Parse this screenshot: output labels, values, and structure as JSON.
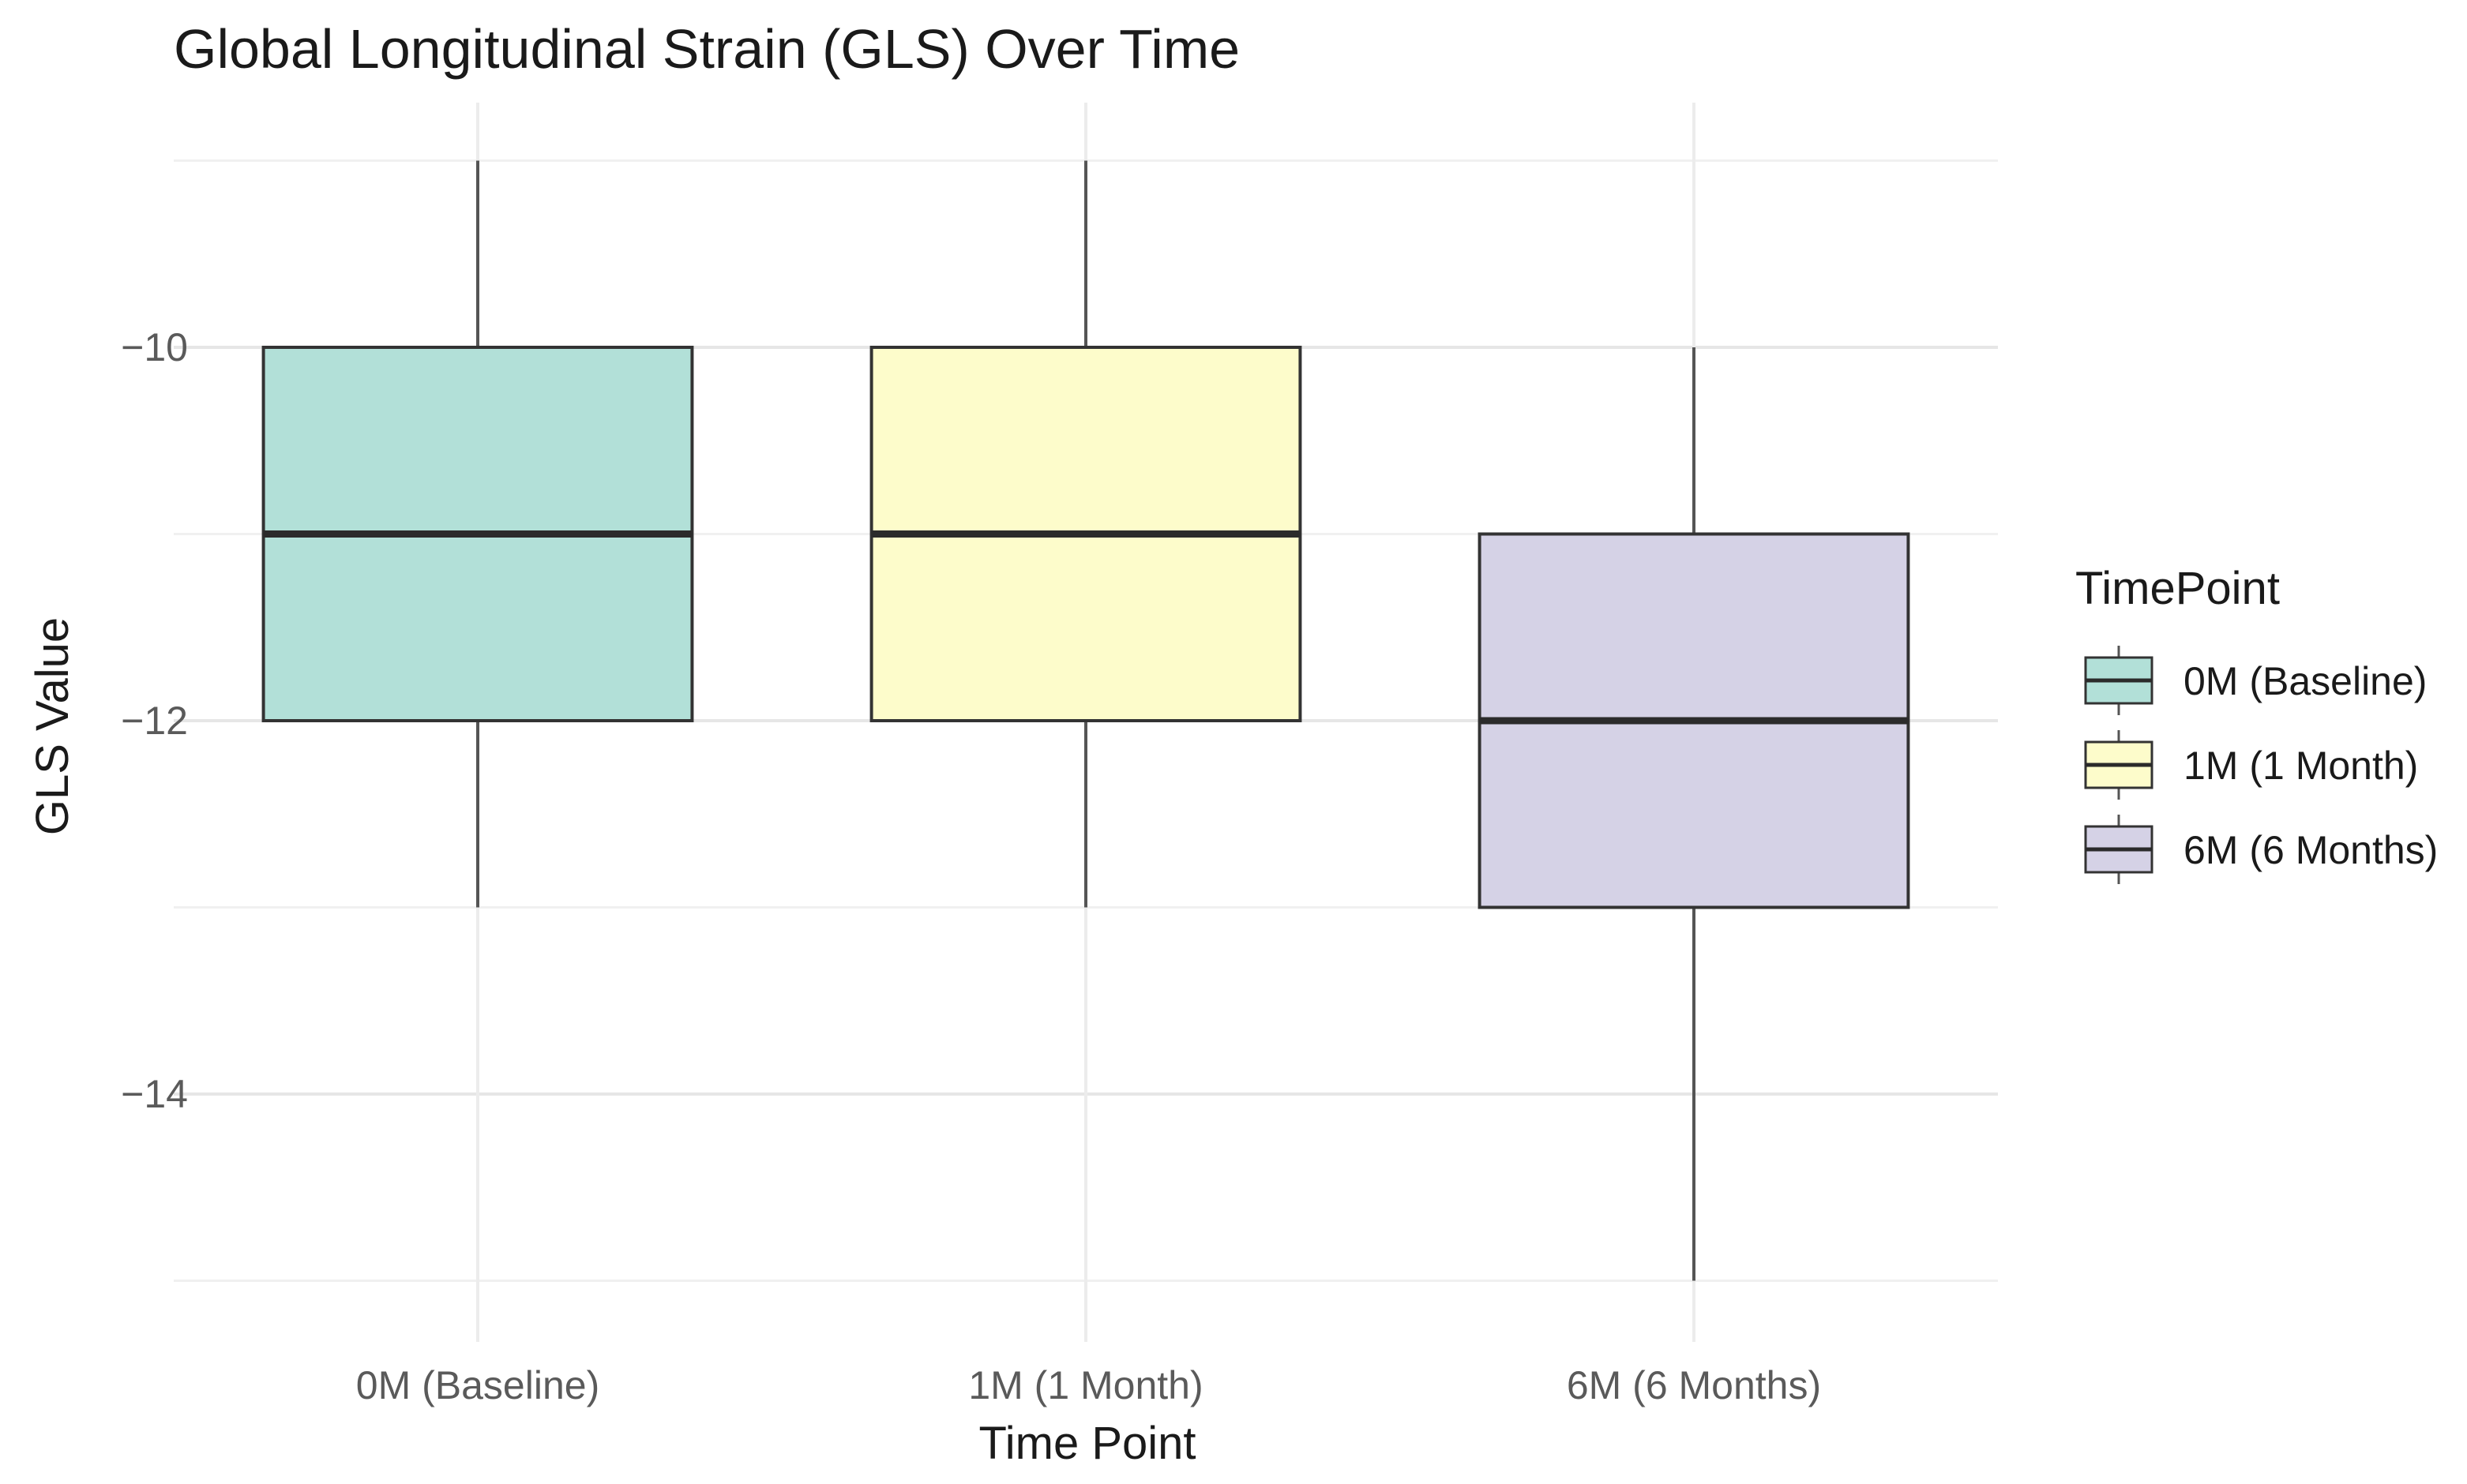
{
  "chart_data": {
    "type": "boxplot",
    "title": "Global Longitudinal Strain (GLS) Over Time",
    "xlabel": "Time Point",
    "ylabel": "GLS Value",
    "categories": [
      "0M (Baseline)",
      "1M (1 Month)",
      "6M (6 Months)"
    ],
    "boxes": [
      {
        "category": "0M (Baseline)",
        "whisker_low": -13,
        "q1": -12,
        "median": -11,
        "q3": -10,
        "whisker_high": -9,
        "color": "#b2e0d8"
      },
      {
        "category": "1M (1 Month)",
        "whisker_low": -13,
        "q1": -12,
        "median": -11,
        "q3": -10,
        "whisker_high": -9,
        "color": "#fdfccb"
      },
      {
        "category": "6M (6 Months)",
        "whisker_low": -15,
        "q1": -13,
        "median": -12,
        "q3": -11,
        "whisker_high": -10,
        "color": "#d5d2e6"
      }
    ],
    "y_ticks": [
      -10,
      -12,
      -14
    ],
    "y_tick_labels": [
      "−10",
      "−12",
      "−14"
    ],
    "ylim": [
      -15.3,
      -8.7
    ],
    "grid": true,
    "legend": {
      "title": "TimePoint",
      "position": "right",
      "entries": [
        "0M (Baseline)",
        "1M (1 Month)",
        "6M (6 Months)"
      ]
    }
  }
}
